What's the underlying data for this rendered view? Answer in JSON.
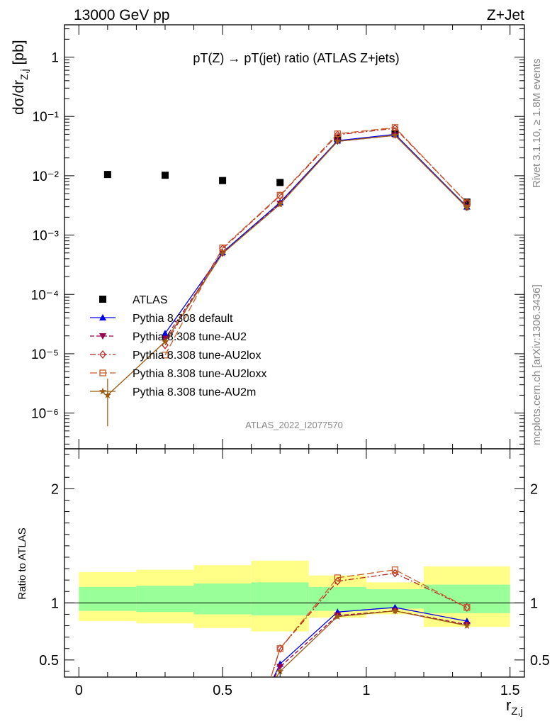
{
  "header": {
    "left": "13000 GeV pp",
    "right": "Z+Jet"
  },
  "side_labels": {
    "rivet": "Rivet 3.1.10, ≥ 1.8M events",
    "mcplots": "mcplots.cern.ch [arXiv:1306.3436]"
  },
  "chart_data": [
    {
      "type": "line",
      "panel": "main",
      "title": "pT(Z) → pT(jet) ratio (ATLAS Z+jets)",
      "watermark": "ATLAS_2022_I2077570",
      "ylabel": "dσ/dr_{Z,j} [pb]",
      "y_scale": "log",
      "ylim": [
        2.5e-07,
        3.5
      ],
      "xlim": [
        -0.05,
        1.55
      ],
      "y_tick_labels": [
        "10⁻⁶",
        "10⁻⁵",
        "10⁻⁴",
        "10⁻³",
        "10⁻²",
        "10⁻¹",
        "1"
      ],
      "legend_position": "lower-left",
      "series": [
        {
          "name": "ATLAS",
          "color": "#000000",
          "marker": "square",
          "line": "none",
          "x": [
            0.1,
            0.3,
            0.5,
            0.7,
            0.9,
            1.1,
            1.35
          ],
          "y": [
            0.0105,
            0.0102,
            0.0083,
            0.0077,
            0.043,
            0.052,
            0.0036
          ]
        },
        {
          "name": "Pythia 8.308 default",
          "color": "#0000ee",
          "marker": "triangle-up",
          "line": "solid",
          "x": [
            0.3,
            0.5,
            0.7,
            0.9,
            1.1,
            1.35
          ],
          "y": [
            2.2e-05,
            0.00051,
            0.00355,
            0.039,
            0.05,
            0.003
          ]
        },
        {
          "name": "Pythia 8.308 tune-AU2",
          "color": "#99004d",
          "marker": "triangle-down",
          "line": "dashed",
          "x": [
            0.3,
            0.5,
            0.7,
            0.9,
            1.1,
            1.35
          ],
          "y": [
            1.8e-05,
            0.00049,
            0.0034,
            0.038,
            0.048,
            0.0029
          ]
        },
        {
          "name": "Pythia 8.308 tune-AU2lox",
          "color": "#bb2222",
          "marker": "diamond-open",
          "line": "dashdot",
          "x": [
            0.3,
            0.5,
            0.7,
            0.9,
            1.1,
            1.35
          ],
          "y": [
            1.4e-05,
            0.00059,
            0.0046,
            0.049,
            0.063,
            0.0035
          ]
        },
        {
          "name": "Pythia 8.308 tune-AU2loxx",
          "color": "#c85a28",
          "marker": "square-open",
          "line": "longdash",
          "x": [
            0.3,
            0.5,
            0.7,
            0.9,
            1.1,
            1.35
          ],
          "y": [
            9.5e-06,
            0.00061,
            0.0047,
            0.051,
            0.065,
            0.0035
          ]
        },
        {
          "name": "Pythia 8.308 tune-AU2m",
          "color": "#9b5a0f",
          "marker": "star",
          "line": "solid",
          "x": [
            0.1,
            0.3,
            0.5,
            0.7,
            0.9,
            1.1,
            1.35
          ],
          "y": [
            2e-06,
            1.6e-05,
            0.00049,
            0.0033,
            0.038,
            0.048,
            0.0029
          ]
        }
      ]
    },
    {
      "type": "line",
      "panel": "ratio",
      "ylabel": "Ratio to ATLAS",
      "xlabel": "r_{Z,j}",
      "ylim": [
        0.35,
        2.35
      ],
      "xlim": [
        -0.05,
        1.55
      ],
      "x_tick_labels": [
        "0",
        "0.5",
        "1",
        "1.5"
      ],
      "y_tick_labels": [
        "0.5",
        "1",
        "2"
      ],
      "bands": {
        "x_edges": [
          0.0,
          0.2,
          0.4,
          0.6,
          0.8,
          1.0,
          1.2,
          1.5
        ],
        "inner_lo": [
          0.93,
          0.92,
          0.9,
          0.89,
          0.93,
          0.95,
          0.91
        ],
        "inner_hi": [
          1.14,
          1.15,
          1.17,
          1.18,
          1.14,
          1.12,
          1.16
        ],
        "outer_lo": [
          0.84,
          0.82,
          0.78,
          0.75,
          0.87,
          0.9,
          0.79
        ],
        "outer_hi": [
          1.27,
          1.29,
          1.33,
          1.37,
          1.24,
          1.18,
          1.32
        ],
        "inner_color": "#99ff99",
        "outer_color": "#ffff88"
      },
      "series": [
        {
          "name": "Pythia 8.308 default",
          "x": [
            0.65,
            0.7,
            0.9,
            1.1,
            1.35
          ],
          "y": [
            0.2,
            0.465,
            0.92,
            0.96,
            0.84
          ]
        },
        {
          "name": "Pythia 8.308 tune-AU2",
          "x": [
            0.65,
            0.7,
            0.9,
            1.1,
            1.35
          ],
          "y": [
            0.2,
            0.44,
            0.89,
            0.93,
            0.81
          ]
        },
        {
          "name": "Pythia 8.308 tune-AU2lox",
          "x": [
            0.65,
            0.7,
            0.9,
            1.1,
            1.35
          ],
          "y": [
            0.2,
            0.6,
            1.19,
            1.26,
            0.96
          ]
        },
        {
          "name": "Pythia 8.308 tune-AU2loxx",
          "x": [
            0.65,
            0.7,
            0.9,
            1.1,
            1.35
          ],
          "y": [
            0.2,
            0.6,
            1.22,
            1.29,
            0.96
          ]
        },
        {
          "name": "Pythia 8.308 tune-AU2m",
          "x": [
            0.65,
            0.7,
            0.9,
            1.1,
            1.35
          ],
          "y": [
            0.2,
            0.4,
            0.88,
            0.93,
            0.8
          ]
        }
      ]
    }
  ]
}
